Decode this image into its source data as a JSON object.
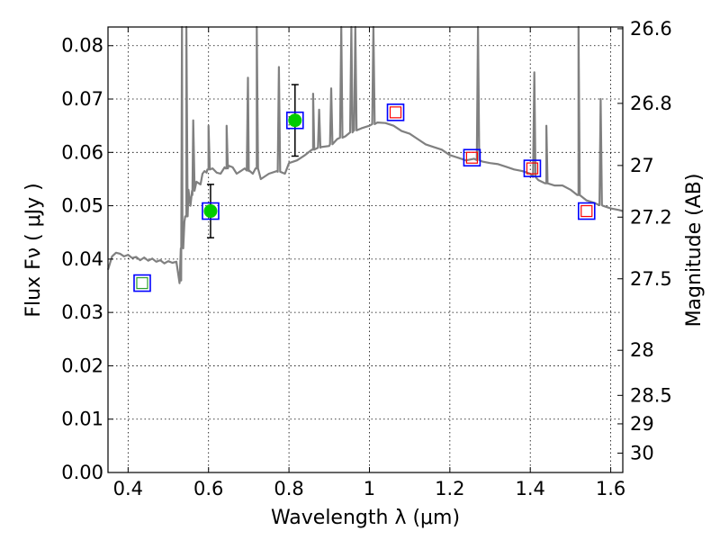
{
  "chart_data": {
    "type": "line",
    "title": "",
    "xlabel": "Wavelength  λ (μm)",
    "ylabel": "Flux  Fν  ( μJy )",
    "ylabel_right": "Magnitude (AB)",
    "xlim": [
      0.35,
      1.63
    ],
    "ylim": [
      0.0,
      0.0835
    ],
    "x_ticks": [
      0.4,
      0.6,
      0.8,
      1.0,
      1.2,
      1.4,
      1.6
    ],
    "x_tick_labels": [
      "0.4",
      "0.6",
      "0.8",
      "1",
      "1.2",
      "1.4",
      "1.6"
    ],
    "y_ticks": [
      0.0,
      0.01,
      0.02,
      0.03,
      0.04,
      0.05,
      0.06,
      0.07,
      0.08
    ],
    "y_tick_labels": [
      "0.00",
      "0.01",
      "0.02",
      "0.03",
      "0.04",
      "0.05",
      "0.06",
      "0.07",
      "0.08"
    ],
    "right_ticks": [
      {
        "mag": 26.6,
        "label": "26.6"
      },
      {
        "mag": 26.8,
        "label": "26.8"
      },
      {
        "mag": 27.0,
        "label": "27"
      },
      {
        "mag": 27.2,
        "label": "27.2"
      },
      {
        "mag": 27.5,
        "label": "27.5"
      },
      {
        "mag": 28.0,
        "label": "28"
      },
      {
        "mag": 28.5,
        "label": "28.5"
      },
      {
        "mag": 29.0,
        "label": "29"
      },
      {
        "mag": 30.0,
        "label": "30"
      }
    ],
    "grid": true,
    "series": [
      {
        "name": "model spectrum",
        "color": "#808080",
        "x": [
          0.35,
          0.36,
          0.37,
          0.38,
          0.39,
          0.4,
          0.41,
          0.42,
          0.43,
          0.44,
          0.45,
          0.46,
          0.47,
          0.48,
          0.49,
          0.5,
          0.51,
          0.52,
          0.525,
          0.528,
          0.532,
          0.535,
          0.54,
          0.545,
          0.55,
          0.555,
          0.56,
          0.565,
          0.57,
          0.58,
          0.585,
          0.59,
          0.595,
          0.6,
          0.61,
          0.62,
          0.63,
          0.64,
          0.645,
          0.65,
          0.66,
          0.67,
          0.68,
          0.69,
          0.7,
          0.71,
          0.72,
          0.73,
          0.75,
          0.77,
          0.79,
          0.8,
          0.82,
          0.84,
          0.86,
          0.88,
          0.9,
          0.92,
          0.94,
          0.96,
          0.98,
          1.0,
          1.02,
          1.04,
          1.06,
          1.08,
          1.1,
          1.12,
          1.14,
          1.16,
          1.18,
          1.2,
          1.22,
          1.24,
          1.26,
          1.28,
          1.3,
          1.32,
          1.34,
          1.36,
          1.38,
          1.4,
          1.42,
          1.44,
          1.46,
          1.48,
          1.5,
          1.52,
          1.54,
          1.56,
          1.58,
          1.6,
          1.62,
          1.63
        ],
        "y": [
          0.038,
          0.0405,
          0.0412,
          0.041,
          0.0405,
          0.0408,
          0.0402,
          0.0404,
          0.0398,
          0.0403,
          0.0397,
          0.0401,
          0.0395,
          0.0398,
          0.0392,
          0.0396,
          0.0393,
          0.0395,
          0.037,
          0.0355,
          0.036,
          0.045,
          0.047,
          0.048,
          0.053,
          0.05,
          0.052,
          0.054,
          0.0545,
          0.054,
          0.056,
          0.0565,
          0.0562,
          0.0568,
          0.057,
          0.0562,
          0.056,
          0.0572,
          0.057,
          0.0575,
          0.0572,
          0.056,
          0.0565,
          0.057,
          0.0565,
          0.056,
          0.057,
          0.055,
          0.056,
          0.0565,
          0.056,
          0.058,
          0.0585,
          0.0595,
          0.0605,
          0.061,
          0.0612,
          0.0625,
          0.063,
          0.064,
          0.0645,
          0.065,
          0.0656,
          0.0655,
          0.065,
          0.064,
          0.0635,
          0.0625,
          0.0615,
          0.061,
          0.0605,
          0.0595,
          0.059,
          0.0585,
          0.0588,
          0.0583,
          0.058,
          0.0578,
          0.0573,
          0.0568,
          0.0565,
          0.056,
          0.0548,
          0.0542,
          0.0538,
          0.0538,
          0.053,
          0.052,
          0.051,
          0.0505,
          0.05,
          0.0495,
          0.0492,
          0.049
        ],
        "emission_lines": [
          {
            "x": 0.534,
            "peak": 0.09
          },
          {
            "x": 0.545,
            "peak": 0.09
          },
          {
            "x": 0.562,
            "peak": 0.066
          },
          {
            "x": 0.6,
            "peak": 0.065
          },
          {
            "x": 0.645,
            "peak": 0.065
          },
          {
            "x": 0.698,
            "peak": 0.074
          },
          {
            "x": 0.72,
            "peak": 0.09
          },
          {
            "x": 0.775,
            "peak": 0.076
          },
          {
            "x": 0.86,
            "peak": 0.071
          },
          {
            "x": 0.875,
            "peak": 0.068
          },
          {
            "x": 0.905,
            "peak": 0.072
          },
          {
            "x": 0.93,
            "peak": 0.09
          },
          {
            "x": 0.955,
            "peak": 0.09
          },
          {
            "x": 0.965,
            "peak": 0.09
          },
          {
            "x": 1.01,
            "peak": 0.09
          },
          {
            "x": 1.27,
            "peak": 0.09
          },
          {
            "x": 1.41,
            "peak": 0.075
          },
          {
            "x": 1.44,
            "peak": 0.065
          },
          {
            "x": 1.52,
            "peak": 0.09
          },
          {
            "x": 1.575,
            "peak": 0.07
          }
        ]
      }
    ],
    "photometry": [
      {
        "x": 0.435,
        "y": 0.0355,
        "marker": "square",
        "inner": "#2ca02c",
        "err": null
      },
      {
        "x": 0.605,
        "y": 0.049,
        "marker": "circle",
        "inner": "#00cc00",
        "err": 0.005
      },
      {
        "x": 0.815,
        "y": 0.066,
        "marker": "circle",
        "inner": "#00cc00",
        "err": 0.0067
      },
      {
        "x": 1.065,
        "y": 0.0675,
        "marker": "square",
        "inner": "#ff0000",
        "err": null
      },
      {
        "x": 1.255,
        "y": 0.059,
        "marker": "square",
        "inner": "#ff0000",
        "err": null
      },
      {
        "x": 1.405,
        "y": 0.057,
        "marker": "square",
        "inner": "#ff0000",
        "err": null
      },
      {
        "x": 1.54,
        "y": 0.049,
        "marker": "square",
        "inner": "#ff0000",
        "err": null
      }
    ],
    "colors": {
      "outer_square": "#0000ff",
      "spectrum": "#808080",
      "errorbar": "#000000"
    }
  }
}
